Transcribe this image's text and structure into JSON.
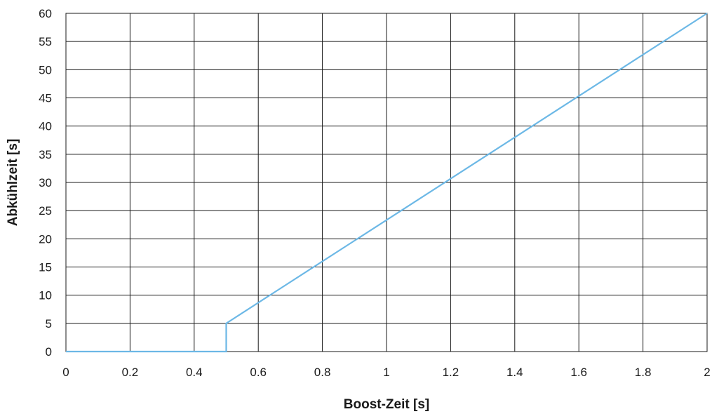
{
  "chart_data": {
    "type": "line",
    "title": "",
    "xlabel": "Boost-Zeit [s]",
    "ylabel": "Abkühlzeit [s]",
    "xlim": [
      0,
      2
    ],
    "ylim": [
      0,
      60
    ],
    "grid": true,
    "x_ticks": [
      "0",
      "0.2",
      "0.4",
      "0.6",
      "0.8",
      "1",
      "1.2",
      "1.4",
      "1.6",
      "1.8",
      "2"
    ],
    "y_ticks": [
      "0",
      "5",
      "10",
      "15",
      "20",
      "25",
      "30",
      "35",
      "40",
      "45",
      "50",
      "55",
      "60"
    ],
    "series": [
      {
        "color": "#6cb8e6",
        "points": [
          {
            "x": 0,
            "y": 0
          },
          {
            "x": 0.5,
            "y": 0
          },
          {
            "x": 0.5,
            "y": 5
          },
          {
            "x": 2,
            "y": 60
          }
        ]
      }
    ]
  }
}
